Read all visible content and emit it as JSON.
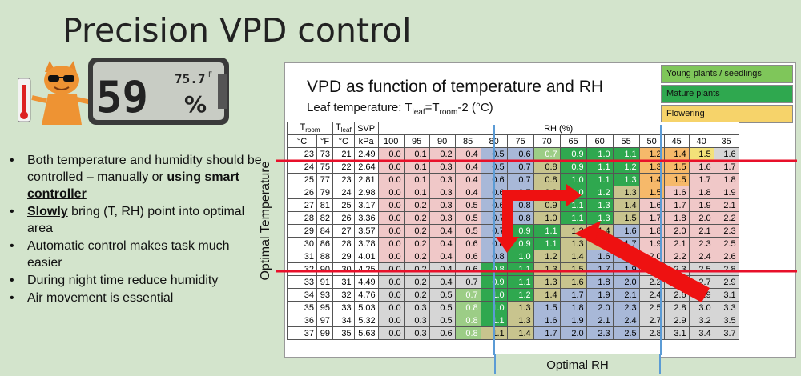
{
  "slide": {
    "title": "Precision VPD control",
    "bullets": [
      {
        "before": "Both temperature and humidity should be controlled – manually or ",
        "strong": "using smart controller",
        "after": ""
      },
      {
        "before": "",
        "strong": "Slowly",
        "after": " bring (T, RH) point into optimal area"
      },
      {
        "before": "Automatic control makes task much easier",
        "strong": "",
        "after": ""
      },
      {
        "before": "During night time reduce humidity",
        "strong": "",
        "after": ""
      },
      {
        "before": "Air movement is essential",
        "strong": "",
        "after": ""
      }
    ],
    "optimal_temperature_label": "Optimal Temperature",
    "optimal_rh_label": "Optimal RH"
  },
  "device": {
    "big": "59",
    "small": "75.7",
    "deg": "F",
    "pct": "%"
  },
  "chart": {
    "title": "VPD as function of temperature and RH",
    "subtitle": {
      "pre": "Leaf temperature: T",
      "leaf": "leaf",
      "mid": "=T",
      "room": "room",
      "post": "-2 (°C)"
    },
    "legend": [
      {
        "label": "Young plants / seedlings",
        "color": "#7fc65a"
      },
      {
        "label": "Mature plants",
        "color": "#2fa84f"
      },
      {
        "label": "Flowering",
        "color": "#f6d36a"
      }
    ],
    "header": {
      "troom": "T",
      "troom_sub": "room",
      "tleaf": "T",
      "tleaf_sub": "leaf",
      "svp": "SVP",
      "rh": "RH (%)",
      "units": [
        "°C",
        "°F",
        "°C",
        "kPa"
      ],
      "rh_values": [
        "100",
        "95",
        "90",
        "85",
        "80",
        "75",
        "70",
        "65",
        "60",
        "55",
        "50",
        "45",
        "40",
        "35"
      ]
    },
    "rows": [
      {
        "c": "23",
        "f": "73",
        "leaf": "21",
        "svp": "2.49",
        "v": [
          "0.0",
          "0.1",
          "0.2",
          "0.4",
          "0.5",
          "0.6",
          "0.7",
          "0.9",
          "1.0",
          "1.1",
          "1.2",
          "1.4",
          "1.5",
          "1.6"
        ]
      },
      {
        "c": "24",
        "f": "75",
        "leaf": "22",
        "svp": "2.64",
        "v": [
          "0.0",
          "0.1",
          "0.3",
          "0.4",
          "0.5",
          "0.7",
          "0.8",
          "0.9",
          "1.1",
          "1.2",
          "1.3",
          "1.5",
          "1.6",
          "1.7"
        ]
      },
      {
        "c": "25",
        "f": "77",
        "leaf": "23",
        "svp": "2.81",
        "v": [
          "0.0",
          "0.1",
          "0.3",
          "0.4",
          "0.6",
          "0.7",
          "0.8",
          "1.0",
          "1.1",
          "1.3",
          "1.4",
          "1.5",
          "1.7",
          "1.8"
        ]
      },
      {
        "c": "26",
        "f": "79",
        "leaf": "24",
        "svp": "2.98",
        "v": [
          "0.0",
          "0.1",
          "0.3",
          "0.4",
          "0.6",
          "0.7",
          "0.9",
          "1.0",
          "1.2",
          "1.3",
          "1.5",
          "1.6",
          "1.8",
          "1.9"
        ]
      },
      {
        "c": "27",
        "f": "81",
        "leaf": "25",
        "svp": "3.17",
        "v": [
          "0.0",
          "0.2",
          "0.3",
          "0.5",
          "0.6",
          "0.8",
          "0.9",
          "1.1",
          "1.3",
          "1.4",
          "1.6",
          "1.7",
          "1.9",
          "2.1"
        ]
      },
      {
        "c": "28",
        "f": "82",
        "leaf": "26",
        "svp": "3.36",
        "v": [
          "0.0",
          "0.2",
          "0.3",
          "0.5",
          "0.7",
          "0.8",
          "1.0",
          "1.1",
          "1.3",
          "1.5",
          "1.7",
          "1.8",
          "2.0",
          "2.2"
        ]
      },
      {
        "c": "29",
        "f": "84",
        "leaf": "27",
        "svp": "3.57",
        "v": [
          "0.0",
          "0.2",
          "0.4",
          "0.5",
          "0.7",
          "0.9",
          "1.1",
          "1.2",
          "1.4",
          "1.6",
          "1.8",
          "2.0",
          "2.1",
          "2.3"
        ]
      },
      {
        "c": "30",
        "f": "86",
        "leaf": "28",
        "svp": "3.78",
        "v": [
          "0.0",
          "0.2",
          "0.4",
          "0.6",
          "0.8",
          "0.9",
          "1.1",
          "1.3",
          "1.5",
          "1.7",
          "1.9",
          "2.1",
          "2.3",
          "2.5"
        ]
      },
      {
        "c": "31",
        "f": "88",
        "leaf": "29",
        "svp": "4.01",
        "v": [
          "0.0",
          "0.2",
          "0.4",
          "0.6",
          "0.8",
          "1.0",
          "1.2",
          "1.4",
          "1.6",
          "1.8",
          "2.0",
          "2.2",
          "2.4",
          "2.6"
        ]
      },
      {
        "c": "32",
        "f": "90",
        "leaf": "30",
        "svp": "4.25",
        "v": [
          "0.0",
          "0.2",
          "0.4",
          "0.6",
          "0.8",
          "1.1",
          "1.3",
          "1.5",
          "1.7",
          "1.9",
          "2.1",
          "2.3",
          "2.5",
          "2.8"
        ]
      },
      {
        "c": "33",
        "f": "91",
        "leaf": "31",
        "svp": "4.49",
        "v": [
          "0.0",
          "0.2",
          "0.4",
          "0.7",
          "0.9",
          "1.1",
          "1.3",
          "1.6",
          "1.8",
          "2.0",
          "2.2",
          "2.5",
          "2.7",
          "2.9"
        ]
      },
      {
        "c": "34",
        "f": "93",
        "leaf": "32",
        "svp": "4.76",
        "v": [
          "0.0",
          "0.2",
          "0.5",
          "0.7",
          "1.0",
          "1.2",
          "1.4",
          "1.7",
          "1.9",
          "2.1",
          "2.4",
          "2.6",
          "2.9",
          "3.1"
        ]
      },
      {
        "c": "35",
        "f": "95",
        "leaf": "33",
        "svp": "5.03",
        "v": [
          "0.0",
          "0.3",
          "0.5",
          "0.8",
          "1.0",
          "1.3",
          "1.5",
          "1.8",
          "2.0",
          "2.3",
          "2.5",
          "2.8",
          "3.0",
          "3.3"
        ]
      },
      {
        "c": "36",
        "f": "97",
        "leaf": "34",
        "svp": "5.32",
        "v": [
          "0.0",
          "0.3",
          "0.5",
          "0.8",
          "1.1",
          "1.3",
          "1.6",
          "1.9",
          "2.1",
          "2.4",
          "2.7",
          "2.9",
          "3.2",
          "3.5"
        ]
      },
      {
        "c": "37",
        "f": "99",
        "leaf": "35",
        "svp": "5.63",
        "v": [
          "0.0",
          "0.3",
          "0.6",
          "0.8",
          "1.1",
          "1.4",
          "1.7",
          "2.0",
          "2.3",
          "2.5",
          "2.8",
          "3.1",
          "3.4",
          "3.7"
        ]
      }
    ],
    "cell_colors": [
      [
        "pink",
        "pink",
        "pink",
        "pink",
        "blue",
        "blue",
        "lgreen",
        "green",
        "green",
        "green",
        "orange",
        "orange",
        "yellow",
        "grey"
      ],
      [
        "pink",
        "pink",
        "pink",
        "pink",
        "blue",
        "blue",
        "khaki",
        "green",
        "green",
        "green",
        "orange",
        "orange",
        "pink",
        "pink"
      ],
      [
        "pink",
        "pink",
        "pink",
        "pink",
        "blue",
        "blue",
        "khaki",
        "green",
        "green",
        "green",
        "orange",
        "orange",
        "pink",
        "pink"
      ],
      [
        "pink",
        "pink",
        "pink",
        "pink",
        "blue",
        "blue",
        "khaki",
        "green",
        "green",
        "khaki",
        "orange",
        "pink",
        "pink",
        "pink"
      ],
      [
        "pink",
        "pink",
        "pink",
        "pink",
        "blue",
        "blue",
        "khaki",
        "green",
        "green",
        "khaki",
        "pink",
        "pink",
        "pink",
        "pink"
      ],
      [
        "pink",
        "pink",
        "pink",
        "pink",
        "blue",
        "blue",
        "khaki",
        "green",
        "green",
        "khaki",
        "pink",
        "pink",
        "pink",
        "pink"
      ],
      [
        "pink",
        "pink",
        "pink",
        "pink",
        "blue",
        "green",
        "green",
        "khaki",
        "khaki",
        "blue",
        "pink",
        "pink",
        "pink",
        "pink"
      ],
      [
        "pink",
        "pink",
        "pink",
        "pink",
        "blue",
        "green",
        "green",
        "khaki",
        "khaki",
        "blue",
        "pink",
        "pink",
        "pink",
        "pink"
      ],
      [
        "pink",
        "pink",
        "pink",
        "pink",
        "blue",
        "green",
        "khaki",
        "khaki",
        "blue",
        "blue",
        "pink",
        "pink",
        "pink",
        "pink"
      ],
      [
        "grey",
        "grey",
        "grey",
        "grey",
        "green",
        "green",
        "khaki",
        "khaki",
        "blue",
        "blue",
        "grey",
        "grey",
        "grey",
        "grey"
      ],
      [
        "grey",
        "grey",
        "grey",
        "grey",
        "green",
        "green",
        "khaki",
        "khaki",
        "blue",
        "blue",
        "grey",
        "grey",
        "grey",
        "grey"
      ],
      [
        "grey",
        "grey",
        "grey",
        "lgreen",
        "green",
        "green",
        "khaki",
        "blue",
        "blue",
        "blue",
        "grey",
        "grey",
        "grey",
        "grey"
      ],
      [
        "grey",
        "grey",
        "grey",
        "lgreen",
        "green",
        "khaki",
        "blue",
        "blue",
        "blue",
        "blue",
        "grey",
        "grey",
        "grey",
        "grey"
      ],
      [
        "grey",
        "grey",
        "grey",
        "lgreen",
        "green",
        "khaki",
        "blue",
        "blue",
        "blue",
        "blue",
        "grey",
        "grey",
        "grey",
        "grey"
      ],
      [
        "grey",
        "grey",
        "grey",
        "lgreen",
        "khaki",
        "khaki",
        "blue",
        "blue",
        "blue",
        "blue",
        "grey",
        "grey",
        "grey",
        "grey"
      ]
    ],
    "colors": {
      "pink": "#f0c8c8",
      "grey": "#d6d6d6",
      "green": "#2fa84f",
      "lgreen": "#9ccd86",
      "blue": "#a8b8d8",
      "khaki": "#c8c48e",
      "orange": "#f6b96a",
      "yellow": "#f3e179",
      "red_line": "#e8102a",
      "arrow": "#ee1111",
      "rh_band": "#5b9bd5"
    }
  }
}
